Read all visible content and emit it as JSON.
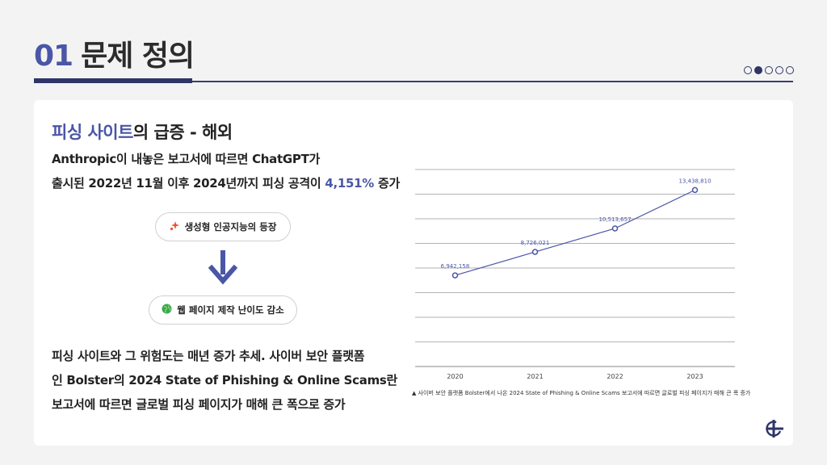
{
  "header": {
    "number": "01",
    "title": "문제 정의",
    "page_indicator": {
      "total": 5,
      "active_index": 1
    }
  },
  "card": {
    "subtitle_highlight": "피싱 사이트",
    "subtitle_rest": "의 급증 - 해외",
    "desc_line1": "Anthropic이 내놓은 보고서에 따르면 ChatGPT가",
    "desc_line2_pre": "출시된 2022년 11월 이후 2024년까지 피싱 공격이 ",
    "desc_line2_pct": "4,151%",
    "desc_line2_post": "증가",
    "flow": {
      "top_label": "생성형 인공지능의 등장",
      "top_icon": "sparkle-icon",
      "bottom_label": "웹 페이지 제작 난이도 감소",
      "bottom_icon": "globe-icon"
    },
    "bottom_line1": "피싱 사이트와 그 위험도는 매년 증가 추세. 사이버 보안 플랫폼",
    "bottom_line2": "인 Bolster의 2024 State of Phishing & Online Scams란",
    "bottom_line3": "보고서에 따르면 글로벌 피싱 페이지가 매해 큰 폭으로 증가",
    "caption": "▲ 사이버 보안 플랫폼 Bolster에서 나온 2024 State of Phishing & Online Scams 보고서에 따르면 글로벌 피싱 페이지가 매해 큰 폭 증가"
  },
  "colors": {
    "accent": "#4a56a6",
    "navy": "#2f3568",
    "text": "#222222"
  },
  "chart_data": {
    "type": "line",
    "categories": [
      "2020",
      "2021",
      "2022",
      "2023"
    ],
    "series": [
      {
        "values": [
          6942158,
          8726021,
          10513657,
          13438810
        ]
      }
    ],
    "data_labels": [
      "6,942,158",
      "8,726,021",
      "10,513,657",
      "13,438,810"
    ],
    "ylim": [
      0,
      15000000
    ],
    "grid": true,
    "title": "",
    "xlabel": "",
    "ylabel": ""
  }
}
